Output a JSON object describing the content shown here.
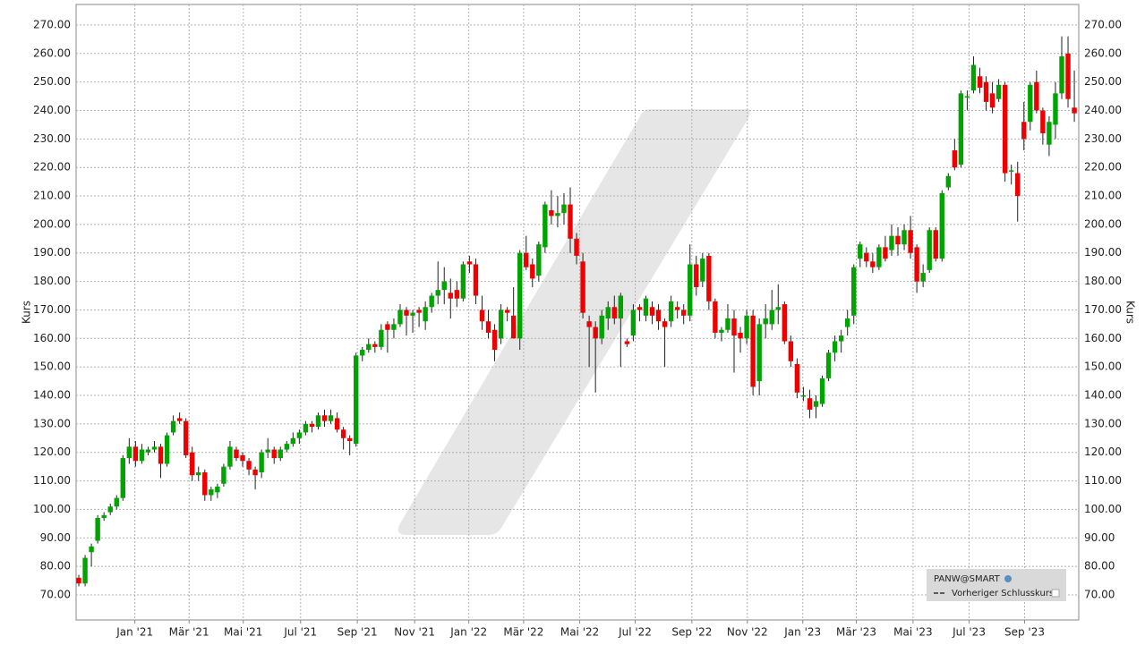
{
  "chart_data": {
    "type": "candlestick",
    "y_label": "Kurs",
    "legend": {
      "symbol": "PANW@SMART",
      "previous_close": "Vorheriger Schlusskurs"
    },
    "legend_position": "lower right",
    "grid": true,
    "up_color": "#00a400",
    "down_color": "#ee0000",
    "xlim": [
      -0.43,
      158.7
    ],
    "ylim": [
      61.2,
      277.2
    ],
    "yticks": [
      {
        "value": 70,
        "label": "70.00"
      },
      {
        "value": 80,
        "label": "80.00"
      },
      {
        "value": 90,
        "label": "90.00"
      },
      {
        "value": 100,
        "label": "100.00"
      },
      {
        "value": 110,
        "label": "110.00"
      },
      {
        "value": 120,
        "label": "120.00"
      },
      {
        "value": 130,
        "label": "130.00"
      },
      {
        "value": 140,
        "label": "140.00"
      },
      {
        "value": 150,
        "label": "150.00"
      },
      {
        "value": 160,
        "label": "160.00"
      },
      {
        "value": 170,
        "label": "170.00"
      },
      {
        "value": 180,
        "label": "180.00"
      },
      {
        "value": 190,
        "label": "190.00"
      },
      {
        "value": 200,
        "label": "200.00"
      },
      {
        "value": 210,
        "label": "210.00"
      },
      {
        "value": 220,
        "label": "220.00"
      },
      {
        "value": 230,
        "label": "230.00"
      },
      {
        "value": 240,
        "label": "240.00"
      },
      {
        "value": 250,
        "label": "250.00"
      },
      {
        "value": 260,
        "label": "260.00"
      },
      {
        "value": 270,
        "label": "270.00"
      }
    ],
    "xticks": [
      {
        "value": 8.9,
        "label": "Jan '21"
      },
      {
        "value": 17.5,
        "label": "Mär '21"
      },
      {
        "value": 26.1,
        "label": "Mai '21"
      },
      {
        "value": 35.2,
        "label": "Jul '21"
      },
      {
        "value": 44.2,
        "label": "Sep '21"
      },
      {
        "value": 53.3,
        "label": "Nov '21"
      },
      {
        "value": 61.9,
        "label": "Jan '22"
      },
      {
        "value": 70.6,
        "label": "Mär '22"
      },
      {
        "value": 79.5,
        "label": "Mai '22"
      },
      {
        "value": 88.3,
        "label": "Jul '22"
      },
      {
        "value": 97.3,
        "label": "Sep '22"
      },
      {
        "value": 106.1,
        "label": "Nov '22"
      },
      {
        "value": 114.9,
        "label": "Jan '23"
      },
      {
        "value": 123.4,
        "label": "Mär '23"
      },
      {
        "value": 132.4,
        "label": "Mai '23"
      },
      {
        "value": 141.3,
        "label": "Jul '23"
      },
      {
        "value": 150.1,
        "label": "Sep '23"
      }
    ],
    "ohlc": [
      [
        76,
        77,
        73,
        74
      ],
      [
        74,
        84,
        73,
        83
      ],
      [
        85,
        88,
        80,
        87
      ],
      [
        89,
        98,
        88,
        97
      ],
      [
        97,
        99,
        96,
        98
      ],
      [
        99,
        102,
        98,
        101
      ],
      [
        101,
        105,
        100,
        104
      ],
      [
        104,
        119,
        103,
        118
      ],
      [
        118,
        125,
        116,
        122
      ],
      [
        122,
        124,
        115,
        117
      ],
      [
        117,
        123,
        116,
        121
      ],
      [
        120,
        122,
        119,
        121
      ],
      [
        121,
        124,
        120,
        122
      ],
      [
        122,
        123,
        111,
        116
      ],
      [
        116,
        127,
        115,
        126
      ],
      [
        127,
        133,
        126,
        131
      ],
      [
        132,
        134,
        130,
        131
      ],
      [
        131,
        132,
        118,
        119
      ],
      [
        120,
        122,
        110,
        112
      ],
      [
        112,
        115,
        110,
        113
      ],
      [
        113,
        114,
        103,
        105
      ],
      [
        105,
        108,
        103,
        107
      ],
      [
        106,
        109,
        104,
        108
      ],
      [
        109,
        116,
        108,
        115
      ],
      [
        115,
        124,
        114,
        122
      ],
      [
        121,
        122,
        117,
        118
      ],
      [
        119,
        120,
        115,
        117
      ],
      [
        117,
        118,
        112,
        114
      ],
      [
        114,
        115,
        107,
        112
      ],
      [
        113,
        121,
        111,
        120
      ],
      [
        120,
        125,
        118,
        121
      ],
      [
        121,
        122,
        116,
        118
      ],
      [
        118,
        122,
        117,
        121
      ],
      [
        121,
        124,
        120,
        123
      ],
      [
        123,
        127,
        122,
        125
      ],
      [
        125,
        128,
        123,
        127
      ],
      [
        127,
        131,
        126,
        130
      ],
      [
        130,
        131,
        127,
        129
      ],
      [
        129,
        134,
        128,
        133
      ],
      [
        133,
        135,
        129,
        131
      ],
      [
        131,
        135,
        130,
        133
      ],
      [
        132,
        134,
        127,
        128
      ],
      [
        128,
        129,
        121,
        125
      ],
      [
        125,
        126,
        119,
        124
      ],
      [
        123,
        155,
        122,
        154
      ],
      [
        154,
        157,
        152,
        156
      ],
      [
        156,
        160,
        155,
        158
      ],
      [
        158,
        159,
        155,
        157
      ],
      [
        157,
        165,
        156,
        163
      ],
      [
        165,
        166,
        155,
        163
      ],
      [
        163,
        167,
        160,
        165
      ],
      [
        165,
        172,
        164,
        170
      ],
      [
        170,
        171,
        161,
        168
      ],
      [
        168,
        170,
        162,
        169
      ],
      [
        170,
        171,
        164,
        169
      ],
      [
        166,
        173,
        163,
        171
      ],
      [
        171,
        176,
        169,
        175
      ],
      [
        175,
        187,
        172,
        177
      ],
      [
        177,
        185,
        172,
        180
      ],
      [
        176,
        181,
        167,
        174
      ],
      [
        177,
        180,
        171,
        174
      ],
      [
        174,
        187,
        173,
        186
      ],
      [
        187,
        189,
        183,
        186
      ],
      [
        186,
        188,
        172,
        175
      ],
      [
        170,
        175,
        163,
        166
      ],
      [
        166,
        170,
        160,
        162
      ],
      [
        163,
        165,
        152,
        156
      ],
      [
        160,
        172,
        158,
        170
      ],
      [
        170,
        171,
        166,
        169
      ],
      [
        168,
        178,
        160,
        160
      ],
      [
        160,
        191,
        156,
        190
      ],
      [
        190,
        196,
        184,
        185
      ],
      [
        186,
        188,
        178,
        181
      ],
      [
        182,
        194,
        180,
        193
      ],
      [
        192,
        208,
        190,
        207
      ],
      [
        205,
        212,
        200,
        203
      ],
      [
        203,
        210,
        199,
        204
      ],
      [
        204,
        211,
        200,
        207
      ],
      [
        207,
        213,
        190,
        195
      ],
      [
        195,
        197,
        186,
        189
      ],
      [
        187,
        190,
        167,
        169
      ],
      [
        166,
        168,
        150,
        164
      ],
      [
        164,
        166,
        141,
        160
      ],
      [
        160,
        170,
        158,
        168
      ],
      [
        167,
        173,
        163,
        171
      ],
      [
        171,
        175,
        165,
        167
      ],
      [
        167,
        176,
        150,
        175
      ],
      [
        159,
        160,
        157,
        158
      ],
      [
        161,
        172,
        159,
        170
      ],
      [
        171,
        172,
        166,
        170
      ],
      [
        168,
        175,
        166,
        174
      ],
      [
        171,
        173,
        165,
        168
      ],
      [
        170,
        172,
        163,
        166
      ],
      [
        166,
        167,
        150,
        164
      ],
      [
        166,
        175,
        164,
        173
      ],
      [
        171,
        173,
        167,
        170
      ],
      [
        170,
        172,
        165,
        168
      ],
      [
        168,
        193,
        166,
        186
      ],
      [
        186,
        189,
        175,
        178
      ],
      [
        180,
        190,
        178,
        188
      ],
      [
        189,
        190,
        170,
        173
      ],
      [
        173,
        174,
        160,
        162
      ],
      [
        162,
        164,
        159,
        163
      ],
      [
        163,
        172,
        162,
        167
      ],
      [
        167,
        170,
        148,
        161
      ],
      [
        162,
        164,
        155,
        160
      ],
      [
        160,
        170,
        158,
        168
      ],
      [
        168,
        170,
        140,
        143
      ],
      [
        145,
        167,
        140,
        165
      ],
      [
        165,
        172,
        160,
        167
      ],
      [
        165,
        177,
        163,
        170
      ],
      [
        170,
        179,
        165,
        171
      ],
      [
        172,
        173,
        158,
        159
      ],
      [
        159,
        161,
        150,
        152
      ],
      [
        151,
        153,
        139,
        141
      ],
      [
        140,
        143,
        138,
        140
      ],
      [
        139,
        142,
        132,
        135
      ],
      [
        136,
        140,
        132,
        138
      ],
      [
        137,
        147,
        136,
        146
      ],
      [
        146,
        156,
        145,
        155
      ],
      [
        155,
        161,
        152,
        159
      ],
      [
        159,
        163,
        155,
        161
      ],
      [
        164,
        170,
        161,
        167
      ],
      [
        168,
        186,
        165,
        185
      ],
      [
        188,
        194,
        185,
        193
      ],
      [
        190,
        192,
        185,
        187
      ],
      [
        187,
        190,
        183,
        185
      ],
      [
        185,
        193,
        184,
        192
      ],
      [
        192,
        196,
        187,
        188
      ],
      [
        191,
        200,
        189,
        196
      ],
      [
        196,
        199,
        189,
        193
      ],
      [
        193,
        200,
        191,
        198
      ],
      [
        198,
        203,
        188,
        190
      ],
      [
        192,
        193,
        176,
        180
      ],
      [
        180,
        186,
        178,
        183
      ],
      [
        184,
        199,
        183,
        198
      ],
      [
        198,
        199,
        187,
        188
      ],
      [
        188,
        212,
        187,
        211
      ],
      [
        213,
        218,
        212,
        217
      ],
      [
        226,
        230,
        219,
        220
      ],
      [
        221,
        247,
        220,
        246
      ],
      [
        245,
        247,
        240,
        245
      ],
      [
        247,
        259,
        246,
        256
      ],
      [
        252,
        255,
        246,
        248
      ],
      [
        250,
        252,
        240,
        243
      ],
      [
        246,
        250,
        239,
        241
      ],
      [
        244,
        251,
        243,
        249
      ],
      [
        249,
        250,
        215,
        218
      ],
      [
        219,
        221,
        214,
        219
      ],
      [
        218,
        222,
        201,
        210
      ],
      [
        236,
        243,
        226,
        230
      ],
      [
        236,
        250,
        233,
        249
      ],
      [
        250,
        254,
        239,
        240
      ],
      [
        240,
        241,
        228,
        232
      ],
      [
        228,
        238,
        224,
        236
      ],
      [
        235,
        250,
        230,
        246
      ],
      [
        246,
        266,
        244,
        259
      ],
      [
        260,
        266,
        241,
        244
      ],
      [
        241,
        254,
        236,
        239
      ]
    ]
  }
}
